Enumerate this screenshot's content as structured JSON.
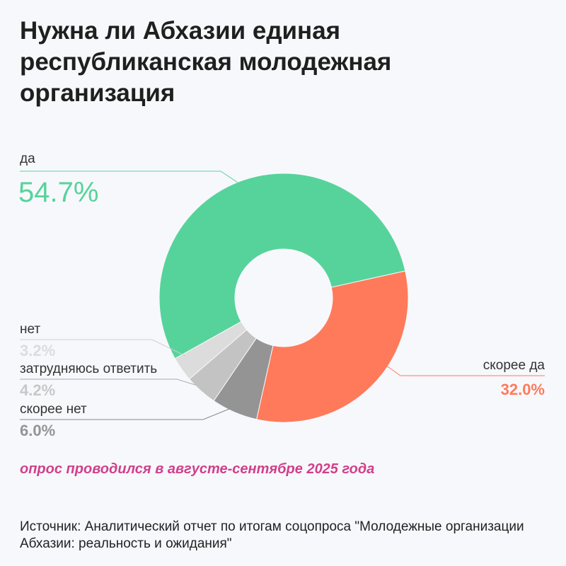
{
  "title": "Нужна ли Абхазии единая республиканская молодежная организация",
  "note": "опрос проводился в августе-сентябре 2025 года",
  "source": "Источник: Аналитический отчет по итогам соцопроса \"Молодежные организации Абхазии: реальность и ожидания\"",
  "chart_data": {
    "type": "pie",
    "donut": true,
    "slices": [
      {
        "label": "да",
        "value": 54.7,
        "display": "54.7%",
        "color": "#56d39b"
      },
      {
        "label": "скорее да",
        "value": 32.0,
        "display": "32.0%",
        "color": "#ff7a5a"
      },
      {
        "label": "скорее нет",
        "value": 6.0,
        "display": "6.0%",
        "color": "#949494"
      },
      {
        "label": "затрудняюсь ответить",
        "value": 4.2,
        "display": "4.2%",
        "color": "#c3c3c3"
      },
      {
        "label": "нет",
        "value": 3.2,
        "display": "3.2%",
        "color": "#dcdcdc"
      }
    ]
  }
}
